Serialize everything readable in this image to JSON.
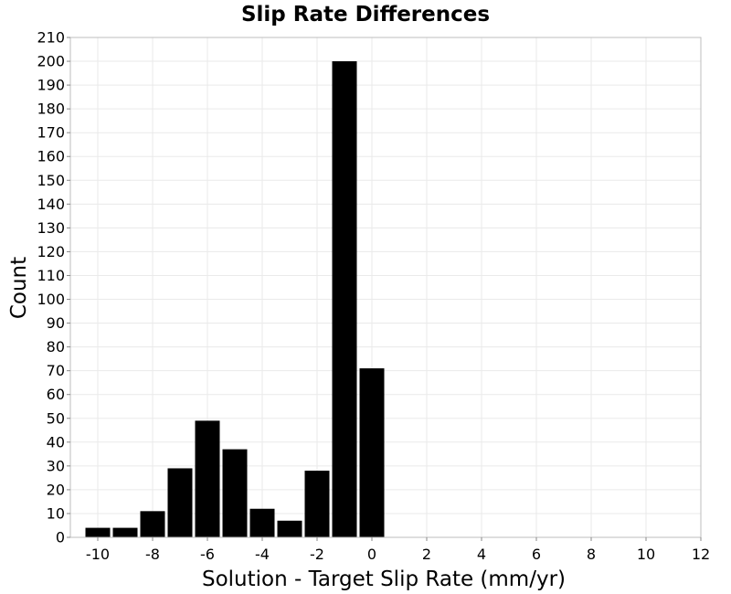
{
  "chart_data": {
    "type": "bar",
    "title": "Slip Rate Differences",
    "xlabel": "Solution - Target Slip Rate (mm/yr)",
    "ylabel": "Count",
    "xlim": [
      -11,
      12
    ],
    "ylim": [
      0,
      210
    ],
    "xticks": [
      -10,
      -8,
      -6,
      -4,
      -2,
      0,
      2,
      4,
      6,
      8,
      10,
      12
    ],
    "yticks": [
      0,
      10,
      20,
      30,
      40,
      50,
      60,
      70,
      80,
      90,
      100,
      110,
      120,
      130,
      140,
      150,
      160,
      170,
      180,
      190,
      200,
      210
    ],
    "bin_width": 1,
    "grid": true,
    "bar_color": "#000000",
    "bins": [
      {
        "x": -10,
        "value": 4
      },
      {
        "x": -9,
        "value": 4
      },
      {
        "x": -8,
        "value": 11
      },
      {
        "x": -7,
        "value": 29
      },
      {
        "x": -6,
        "value": 49
      },
      {
        "x": -5,
        "value": 37
      },
      {
        "x": -4,
        "value": 12
      },
      {
        "x": -3,
        "value": 7
      },
      {
        "x": -2,
        "value": 28
      },
      {
        "x": -1,
        "value": 200
      },
      {
        "x": 0,
        "value": 71
      }
    ]
  }
}
